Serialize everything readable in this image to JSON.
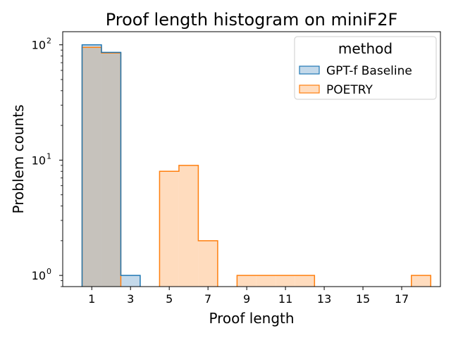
{
  "chart_data": {
    "type": "histogram",
    "title": "Proof length histogram on miniF2F",
    "xlabel": "Proof length",
    "ylabel": "Problem counts",
    "y_scale": "log",
    "xlim": [
      -0.5,
      19.0
    ],
    "ylim": [
      0.8,
      130
    ],
    "x_ticks": [
      1,
      3,
      5,
      7,
      9,
      11,
      13,
      15,
      17
    ],
    "y_ticks": [
      {
        "value": 1,
        "label": "10",
        "exp": "0"
      },
      {
        "value": 10,
        "label": "10",
        "exp": "1"
      },
      {
        "value": 100,
        "label": "10",
        "exp": "2"
      }
    ],
    "grid": false,
    "legend": {
      "title": "method",
      "placement": "top-right"
    },
    "series": [
      {
        "name": "GPT-f Baseline",
        "fill": "#c4d9ea",
        "stroke": "#1f77b4",
        "bins": [
          {
            "x0": 0.5,
            "x1": 1.5,
            "count": 100
          },
          {
            "x0": 1.5,
            "x1": 2.5,
            "count": 86
          },
          {
            "x0": 2.5,
            "x1": 3.5,
            "count": 1
          }
        ]
      },
      {
        "name": "POETRY",
        "fill": "#ffdcbe",
        "stroke": "#ff7f0e",
        "bins": [
          {
            "x0": 0.5,
            "x1": 1.5,
            "count": 95
          },
          {
            "x0": 1.5,
            "x1": 2.5,
            "count": 85
          },
          {
            "x0": 4.5,
            "x1": 5.5,
            "count": 8
          },
          {
            "x0": 5.5,
            "x1": 6.5,
            "count": 9
          },
          {
            "x0": 6.5,
            "x1": 7.5,
            "count": 2
          },
          {
            "x0": 8.5,
            "x1": 9.5,
            "count": 1
          },
          {
            "x0": 9.5,
            "x1": 10.5,
            "count": 1
          },
          {
            "x0": 10.5,
            "x1": 11.5,
            "count": 1
          },
          {
            "x0": 11.5,
            "x1": 12.5,
            "count": 1
          },
          {
            "x0": 17.5,
            "x1": 18.5,
            "count": 1
          }
        ]
      }
    ],
    "overlap_fill": "#c6c2bc"
  }
}
